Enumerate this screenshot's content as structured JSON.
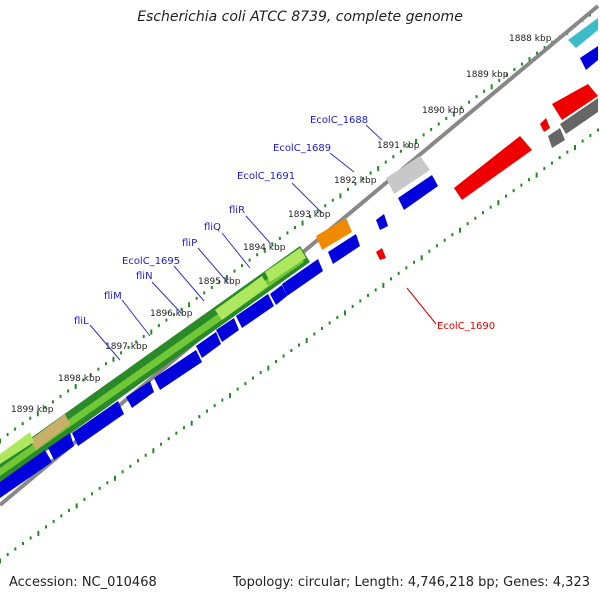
{
  "header": {
    "title": "Escherichia coli ATCC 8739, complete genome"
  },
  "footer": {
    "accession": "Accession: NC_010468",
    "summary": "Topology: circular; Length: 4,746,218 bp; Genes: 4,323"
  },
  "ticks": [
    "1888 kbp",
    "1889 kbp",
    "1890 kbp",
    "1891 kbp",
    "1892 kbp",
    "1893 kbp",
    "1894 kbp",
    "1895 kbp",
    "1896 kbp",
    "1897 kbp",
    "1898 kbp",
    "1899 kbp"
  ],
  "genes": [
    "EcolC_1688",
    "EcolC_1689",
    "EcolC_1691",
    "fliR",
    "fliQ",
    "fliP",
    "EcolC_1695",
    "fliN",
    "fliM",
    "fliL"
  ],
  "gene_reverse": "EcolC_1690",
  "colors": {
    "forward_cds": "#0000dd",
    "reverse_cds": "#ee0000",
    "backbone": "#808080",
    "tick_marks": "#228b22",
    "dark_green": "#2a8a2a",
    "light_green": "#aee860",
    "orange": "#f08a00",
    "silver": "#c8c8c8",
    "teal": "#3cbcc8",
    "dark_gray": "#666666"
  }
}
